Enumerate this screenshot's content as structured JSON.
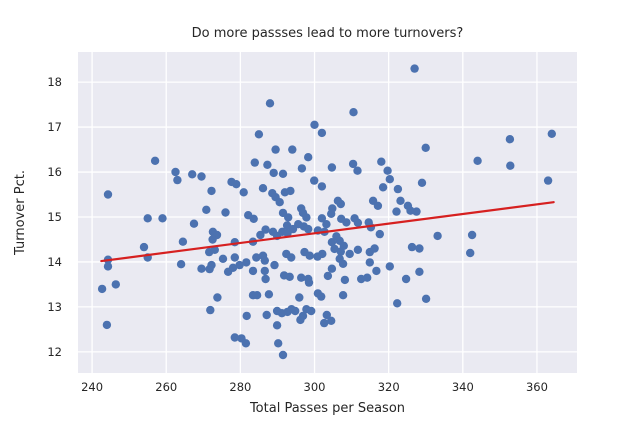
{
  "chart_data": {
    "type": "scatter",
    "title": "Do more passses lead to more turnovers?",
    "xlabel": "Total Passes per Season",
    "ylabel": "Turnover Pct.",
    "xlim": [
      236.2,
      370.8
    ],
    "ylim": [
      11.53,
      18.67
    ],
    "x_ticks": [
      240,
      260,
      280,
      300,
      320,
      340,
      360
    ],
    "y_ticks": [
      12,
      13,
      14,
      15,
      16,
      17,
      18
    ],
    "grid": true,
    "legend": "none",
    "style": {
      "plot_bg": "#eaeaf2",
      "grid_color": "#ffffff",
      "dot_color": "#4c72b0",
      "trend_color": "#d62020",
      "text_color": "#262626",
      "dot_radius": 4.2
    },
    "trend_line": {
      "x1": 242.5,
      "y1": 14.02,
      "x2": 364.5,
      "y2": 15.33
    },
    "points": [
      [
        257.0,
        16.25
      ],
      [
        244.3,
        15.5
      ],
      [
        262.5,
        16.0
      ],
      [
        263.0,
        15.82
      ],
      [
        267.0,
        15.95
      ],
      [
        269.5,
        15.9
      ],
      [
        255.0,
        14.97
      ],
      [
        259.0,
        14.97
      ],
      [
        267.5,
        14.85
      ],
      [
        264.5,
        14.45
      ],
      [
        254.0,
        14.33
      ],
      [
        255.0,
        14.1
      ],
      [
        244.3,
        14.05
      ],
      [
        264.0,
        13.95
      ],
      [
        244.3,
        13.9
      ],
      [
        269.5,
        13.85
      ],
      [
        242.7,
        13.4
      ],
      [
        246.4,
        13.5
      ],
      [
        244.0,
        12.6
      ],
      [
        288.0,
        17.53
      ],
      [
        285.0,
        16.84
      ],
      [
        289.5,
        16.5
      ],
      [
        294.0,
        16.5
      ],
      [
        300.0,
        17.05
      ],
      [
        302.0,
        16.87
      ],
      [
        298.3,
        16.33
      ],
      [
        327.0,
        18.3
      ],
      [
        310.5,
        17.33
      ],
      [
        330.0,
        16.54
      ],
      [
        352.7,
        16.73
      ],
      [
        364.0,
        16.85
      ],
      [
        344.0,
        16.25
      ],
      [
        352.8,
        16.14
      ],
      [
        363.0,
        15.81
      ],
      [
        342.5,
        14.6
      ],
      [
        342.0,
        14.2
      ],
      [
        283.9,
        16.21
      ],
      [
        287.3,
        16.16
      ],
      [
        289.0,
        15.98
      ],
      [
        291.5,
        15.96
      ],
      [
        296.6,
        16.08
      ],
      [
        299.9,
        15.81
      ],
      [
        302.0,
        15.68
      ],
      [
        277.6,
        15.78
      ],
      [
        278.9,
        15.73
      ],
      [
        280.9,
        15.55
      ],
      [
        286.1,
        15.64
      ],
      [
        288.6,
        15.53
      ],
      [
        289.5,
        15.44
      ],
      [
        290.6,
        15.33
      ],
      [
        292.0,
        15.55
      ],
      [
        293.5,
        15.58
      ],
      [
        272.2,
        15.58
      ],
      [
        270.8,
        15.16
      ],
      [
        276.0,
        15.1
      ],
      [
        282.1,
        15.04
      ],
      [
        283.6,
        14.96
      ],
      [
        291.5,
        15.09
      ],
      [
        292.9,
        14.99
      ],
      [
        296.4,
        15.19
      ],
      [
        296.9,
        15.09
      ],
      [
        297.8,
        14.99
      ],
      [
        302.0,
        14.97
      ],
      [
        303.2,
        14.84
      ],
      [
        272.6,
        14.67
      ],
      [
        273.7,
        14.6
      ],
      [
        272.5,
        14.5
      ],
      [
        278.5,
        14.44
      ],
      [
        283.4,
        14.45
      ],
      [
        285.4,
        14.6
      ],
      [
        286.8,
        14.72
      ],
      [
        288.8,
        14.67
      ],
      [
        289.9,
        14.58
      ],
      [
        291.3,
        14.67
      ],
      [
        292.6,
        14.81
      ],
      [
        292.7,
        14.64
      ],
      [
        294.2,
        14.73
      ],
      [
        295.6,
        14.84
      ],
      [
        297.1,
        14.79
      ],
      [
        298.3,
        14.73
      ],
      [
        300.9,
        14.7
      ],
      [
        302.7,
        14.67
      ],
      [
        271.6,
        14.22
      ],
      [
        273.1,
        14.27
      ],
      [
        275.3,
        14.07
      ],
      [
        278.5,
        14.1
      ],
      [
        281.6,
        13.99
      ],
      [
        284.3,
        14.1
      ],
      [
        286.1,
        14.14
      ],
      [
        286.6,
        14.03
      ],
      [
        292.4,
        14.18
      ],
      [
        293.7,
        14.1
      ],
      [
        297.3,
        14.22
      ],
      [
        298.7,
        14.14
      ],
      [
        300.8,
        14.12
      ],
      [
        302.1,
        14.18
      ],
      [
        272.2,
        13.93
      ],
      [
        279.8,
        13.93
      ],
      [
        289.2,
        13.93
      ],
      [
        304.7,
        16.1
      ],
      [
        310.4,
        16.18
      ],
      [
        311.6,
        16.03
      ],
      [
        318.0,
        16.23
      ],
      [
        319.7,
        16.03
      ],
      [
        320.3,
        15.84
      ],
      [
        322.5,
        15.62
      ],
      [
        318.5,
        15.66
      ],
      [
        329.0,
        15.76
      ],
      [
        323.2,
        15.36
      ],
      [
        325.2,
        15.25
      ],
      [
        315.8,
        15.36
      ],
      [
        317.1,
        15.25
      ],
      [
        306.3,
        15.36
      ],
      [
        307.1,
        15.29
      ],
      [
        304.8,
        15.19
      ],
      [
        304.5,
        15.07
      ],
      [
        307.2,
        14.96
      ],
      [
        308.6,
        14.88
      ],
      [
        310.8,
        14.97
      ],
      [
        311.7,
        14.87
      ],
      [
        314.6,
        14.88
      ],
      [
        315.2,
        14.77
      ],
      [
        322.1,
        15.12
      ],
      [
        325.9,
        15.14
      ],
      [
        327.5,
        15.12
      ],
      [
        317.6,
        14.62
      ],
      [
        305.9,
        14.57
      ],
      [
        306.8,
        14.47
      ],
      [
        304.7,
        14.44
      ],
      [
        307.9,
        14.36
      ],
      [
        305.4,
        14.29
      ],
      [
        307.1,
        14.23
      ],
      [
        309.5,
        14.18
      ],
      [
        311.7,
        14.27
      ],
      [
        316.2,
        14.3
      ],
      [
        314.9,
        14.22
      ],
      [
        326.3,
        14.33
      ],
      [
        328.3,
        14.3
      ],
      [
        333.2,
        14.58
      ],
      [
        306.8,
        14.07
      ],
      [
        307.7,
        13.96
      ],
      [
        314.9,
        13.99
      ],
      [
        271.7,
        13.84
      ],
      [
        276.7,
        13.78
      ],
      [
        278.0,
        13.87
      ],
      [
        283.4,
        13.8
      ],
      [
        286.6,
        13.8
      ],
      [
        286.8,
        13.62
      ],
      [
        291.8,
        13.7
      ],
      [
        293.3,
        13.67
      ],
      [
        296.4,
        13.65
      ],
      [
        298.3,
        13.62
      ],
      [
        298.5,
        13.54
      ],
      [
        273.8,
        13.21
      ],
      [
        283.4,
        13.26
      ],
      [
        284.5,
        13.26
      ],
      [
        287.7,
        13.28
      ],
      [
        295.9,
        13.21
      ],
      [
        300.9,
        13.3
      ],
      [
        301.8,
        13.23
      ],
      [
        271.9,
        12.93
      ],
      [
        281.7,
        12.8
      ],
      [
        287.1,
        12.82
      ],
      [
        289.9,
        12.91
      ],
      [
        291.2,
        12.86
      ],
      [
        292.7,
        12.89
      ],
      [
        293.8,
        12.95
      ],
      [
        294.8,
        12.91
      ],
      [
        296.9,
        12.8
      ],
      [
        296.2,
        12.71
      ],
      [
        297.8,
        12.95
      ],
      [
        299.1,
        12.91
      ],
      [
        289.9,
        12.59
      ],
      [
        302.6,
        12.64
      ],
      [
        303.3,
        12.82
      ],
      [
        278.5,
        12.32
      ],
      [
        280.3,
        12.3
      ],
      [
        281.5,
        12.19
      ],
      [
        290.2,
        12.19
      ],
      [
        291.5,
        11.93
      ],
      [
        303.6,
        13.69
      ],
      [
        304.7,
        13.85
      ],
      [
        308.2,
        13.6
      ],
      [
        307.7,
        13.26
      ],
      [
        312.6,
        13.62
      ],
      [
        314.2,
        13.65
      ],
      [
        316.7,
        13.8
      ],
      [
        320.3,
        13.9
      ],
      [
        324.7,
        13.62
      ],
      [
        328.3,
        13.78
      ],
      [
        322.3,
        13.08
      ],
      [
        330.1,
        13.18
      ],
      [
        304.5,
        12.69
      ]
    ]
  }
}
